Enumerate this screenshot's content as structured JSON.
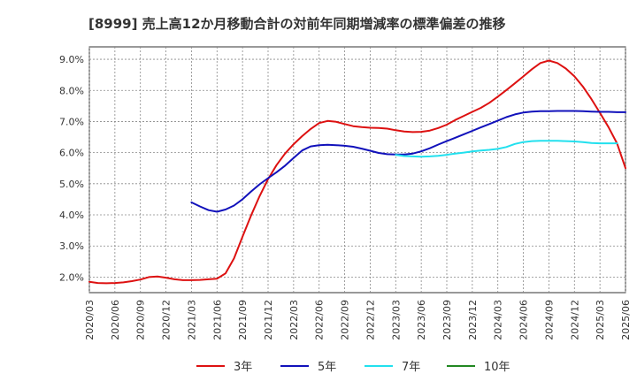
{
  "chart_data": {
    "type": "line",
    "title": "[8999]  売上高12か月移動合計の対前年同期増減率の標準偏差の推移",
    "xlabel": "",
    "ylabel": "",
    "ylim": [
      1.5,
      9.4
    ],
    "yticks": [
      2.0,
      3.0,
      4.0,
      5.0,
      6.0,
      7.0,
      8.0,
      9.0
    ],
    "ytick_labels": [
      "2.0%",
      "3.0%",
      "4.0%",
      "5.0%",
      "6.0%",
      "7.0%",
      "8.0%",
      "9.0%"
    ],
    "xtick_labels": [
      "2020/03",
      "2020/06",
      "2020/09",
      "2020/12",
      "2021/03",
      "2021/06",
      "2021/09",
      "2021/12",
      "2022/03",
      "2022/06",
      "2022/09",
      "2022/12",
      "2023/03",
      "2023/06",
      "2023/09",
      "2023/12",
      "2024/03",
      "2024/06",
      "2024/09",
      "2024/12",
      "2025/03",
      "2025/06"
    ],
    "x_start": "2020/03",
    "months_total": 63,
    "grid": true,
    "legend_position": "bottom",
    "series": [
      {
        "name": "3年",
        "color": "#dd1111",
        "start_index": 0,
        "values": [
          1.85,
          1.81,
          1.8,
          1.81,
          1.83,
          1.87,
          1.92,
          2.0,
          2.02,
          1.98,
          1.93,
          1.9,
          1.9,
          1.91,
          1.93,
          1.95,
          2.12,
          2.6,
          3.3,
          3.98,
          4.6,
          5.15,
          5.6,
          5.97,
          6.27,
          6.53,
          6.76,
          6.95,
          7.02,
          6.99,
          6.92,
          6.85,
          6.82,
          6.8,
          6.79,
          6.77,
          6.72,
          6.68,
          6.66,
          6.67,
          6.71,
          6.79,
          6.9,
          7.05,
          7.18,
          7.31,
          7.44,
          7.6,
          7.8,
          8.01,
          8.23,
          8.45,
          8.68,
          8.88,
          8.96,
          8.88,
          8.7,
          8.45,
          8.12,
          7.72,
          7.28,
          6.82,
          6.3,
          5.5
        ]
      },
      {
        "name": "5年",
        "color": "#1111bb",
        "start_index": 12,
        "values": [
          4.4,
          4.27,
          4.15,
          4.1,
          4.17,
          4.3,
          4.5,
          4.75,
          4.98,
          5.18,
          5.37,
          5.58,
          5.83,
          6.07,
          6.2,
          6.24,
          6.25,
          6.24,
          6.22,
          6.19,
          6.13,
          6.06,
          5.99,
          5.95,
          5.94,
          5.94,
          5.97,
          6.04,
          6.14,
          6.26,
          6.37,
          6.48,
          6.59,
          6.7,
          6.81,
          6.92,
          7.03,
          7.14,
          7.23,
          7.29,
          7.32,
          7.33,
          7.33,
          7.34,
          7.34,
          7.34,
          7.33,
          7.32,
          7.31,
          7.31,
          7.3,
          7.3
        ]
      },
      {
        "name": "7年",
        "color": "#22e0ee",
        "start_index": 36,
        "values": [
          5.93,
          5.89,
          5.88,
          5.87,
          5.88,
          5.9,
          5.93,
          5.97,
          6.0,
          6.04,
          6.07,
          6.09,
          6.12,
          6.18,
          6.28,
          6.34,
          6.37,
          6.38,
          6.38,
          6.38,
          6.37,
          6.36,
          6.34,
          6.31,
          6.3,
          6.3,
          6.3
        ]
      },
      {
        "name": "10年",
        "color": "#228822",
        "start_index": 0,
        "values": []
      }
    ]
  }
}
